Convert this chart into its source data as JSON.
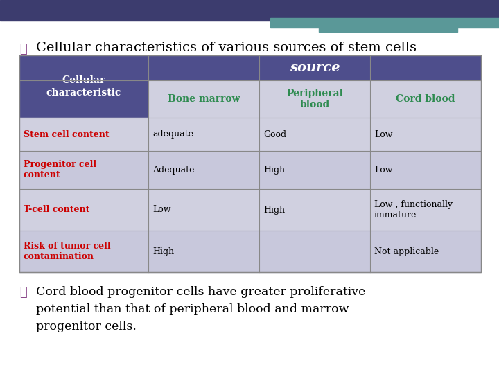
{
  "title": "Cellular characteristics of various sources of stem cells",
  "title_fontsize": 14,
  "bg_color": "#ffffff",
  "header_bg": "#4e4e8c",
  "header_text_color": "#ffffff",
  "source_label": "source",
  "col_header_color": "#2e8b50",
  "row_label_color": "#cc0000",
  "cell_bg_light": "#d0d0e0",
  "cell_bg_mid": "#c8c8dc",
  "col_headers": [
    "Bone marrow",
    "Peripheral\nblood",
    "Cord blood"
  ],
  "row_labels": [
    "Stem cell content",
    "Progenitor cell\ncontent",
    "T-cell content",
    "Risk of tumor cell\ncontamination"
  ],
  "table_data": [
    [
      "adequate",
      "Good",
      "Low"
    ],
    [
      "Adequate",
      "High",
      "Low"
    ],
    [
      "Low",
      "High",
      "Low , functionally\nimmature"
    ],
    [
      "High",
      "",
      "Not applicable"
    ]
  ],
  "footer_text": "Cord blood progenitor cells have greater proliferative\npotential than that of peripheral blood and marrow\nprogenitor cells.",
  "footer_fontsize": 12.5,
  "checkbox_color": "#8b4a8b",
  "top_bar_color1": "#3c3c6e",
  "top_bar_color2": "#5a9898"
}
